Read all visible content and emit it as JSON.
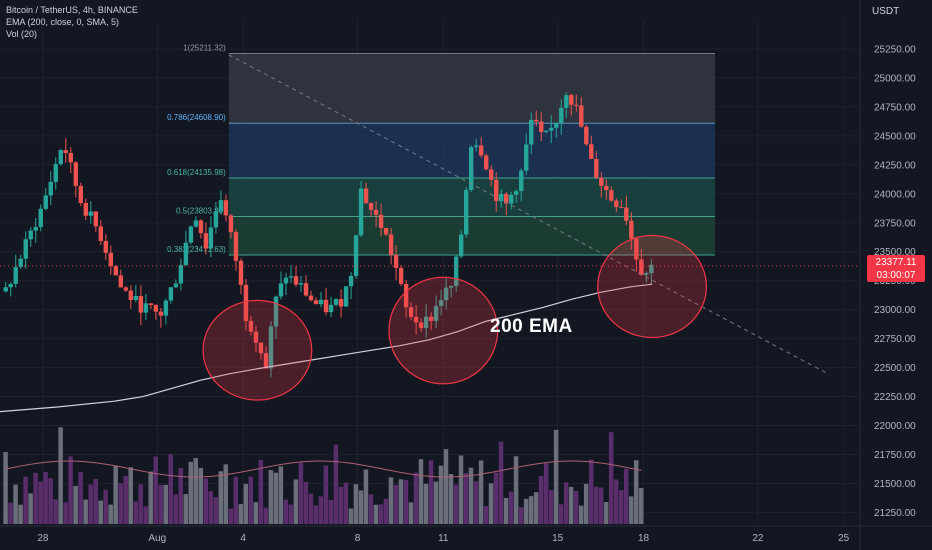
{
  "legend": {
    "symbol": "Bitcoin / TetherUS, 4h, BINANCE",
    "ema": "EMA (200, close, 0, SMA, 5)",
    "vol": "Vol (20)"
  },
  "currency": "USDT",
  "price_tag": {
    "price": "23377.11",
    "countdown": "03:00:07"
  },
  "annotation": "200 EMA",
  "colors": {
    "background": "#131722",
    "up": "#26a69a",
    "down": "#ef5350",
    "ema": "#d1d4dc",
    "price_line": "#f23645",
    "circle": "#f23645",
    "trendline": "#787b86",
    "volume_up": "#6b6f7c",
    "volume_down": "#5a2d6b",
    "volume_ma": "#b06070"
  },
  "chart_data": {
    "type": "candlestick",
    "instrument": "Bitcoin / TetherUS",
    "timeframe": "4h",
    "exchange": "BINANCE",
    "y_axis": {
      "ticks": [
        21250,
        21500,
        21750,
        22000,
        22250,
        22500,
        22750,
        23000,
        23250,
        23500,
        23750,
        24000,
        24250,
        24500,
        24750,
        25000,
        25250
      ],
      "tick_labels": [
        "21250.00",
        "21500.00",
        "21750.00",
        "22000.00",
        "22250.00",
        "22500.00",
        "22750.00",
        "23000.00",
        "23250.00",
        "23500.00",
        "23750.00",
        "24000.00",
        "24250.00",
        "24500.00",
        "24750.00",
        "25000.00",
        "25250.00"
      ],
      "range": [
        21150,
        25500
      ]
    },
    "x_axis": {
      "range": [
        "Jul 27 12:00",
        "Aug 26 00:00"
      ],
      "tick_labels": [
        "28",
        "Aug",
        "4",
        "8",
        "11",
        "15",
        "18",
        "22",
        "25"
      ],
      "tick_days": [
        1.5,
        5.5,
        8.5,
        12.5,
        15.5,
        19.5,
        22.5,
        26.5,
        29.5
      ]
    },
    "fibonacci": {
      "levels": [
        {
          "label": "1(25211.32)",
          "ratio": 1,
          "price": 25211.32
        },
        {
          "label": "0.786(24608.90)",
          "ratio": 0.786,
          "price": 24608.9
        },
        {
          "label": "0.618(24135.98)",
          "ratio": 0.618,
          "price": 24135.98
        },
        {
          "label": "0.5(23803.80)",
          "ratio": 0.5,
          "price": 23803.8
        },
        {
          "label": "0.382(23471.63)",
          "ratio": 0.382,
          "price": 23471.63
        }
      ],
      "from_day": 8.0,
      "to_day": 25.0,
      "fills": [
        "#3a3d47",
        "#1f3a5f",
        "#1b4e47",
        "#1f4a3a"
      ]
    },
    "ema_200": [
      [
        5.0,
        22250
      ],
      [
        6.0,
        22320
      ],
      [
        7.0,
        22390
      ],
      [
        8.0,
        22445
      ],
      [
        9.0,
        22490
      ],
      [
        10.0,
        22530
      ],
      [
        11.0,
        22570
      ],
      [
        12.0,
        22610
      ],
      [
        13.0,
        22650
      ],
      [
        14.0,
        22690
      ],
      [
        15.0,
        22740
      ],
      [
        16.0,
        22810
      ],
      [
        17.0,
        22900
      ],
      [
        18.0,
        22960
      ],
      [
        19.0,
        23020
      ],
      [
        20.0,
        23090
      ],
      [
        21.0,
        23150
      ],
      [
        22.0,
        23195
      ],
      [
        22.8,
        23220
      ]
    ],
    "trendline": {
      "start": [
        8.0,
        25200
      ],
      "end": [
        29.0,
        22440
      ]
    },
    "current_price": 23377.11,
    "circles": [
      {
        "center": [
          9.0,
          22650
        ],
        "radius_days": 1.9,
        "radius_price": 430
      },
      {
        "center": [
          15.5,
          22820
        ],
        "radius_days": 1.9,
        "radius_price": 460
      },
      {
        "center": [
          22.8,
          23200
        ],
        "radius_days": 1.9,
        "radius_price": 440
      }
    ],
    "candles": [],
    "candle_anchors": [
      [
        5.6,
        22950
      ],
      [
        6.2,
        23300
      ],
      [
        6.8,
        23850
      ],
      [
        7.2,
        23550
      ],
      [
        7.7,
        24000
      ],
      [
        8.2,
        23500
      ],
      [
        8.6,
        22950
      ],
      [
        9.0,
        22750
      ],
      [
        9.3,
        22500
      ],
      [
        9.6,
        23050
      ],
      [
        10.0,
        23300
      ],
      [
        10.5,
        23200
      ],
      [
        11.0,
        23050
      ],
      [
        11.5,
        23000
      ],
      [
        12.0,
        23100
      ],
      [
        12.3,
        23350
      ],
      [
        12.6,
        24050
      ],
      [
        13.0,
        23850
      ],
      [
        13.4,
        23700
      ],
      [
        13.8,
        23400
      ],
      [
        14.2,
        23000
      ],
      [
        14.6,
        22900
      ],
      [
        15.0,
        22900
      ],
      [
        15.4,
        23100
      ],
      [
        15.8,
        23200
      ],
      [
        16.1,
        23600
      ],
      [
        16.5,
        24500
      ],
      [
        16.9,
        24350
      ],
      [
        17.3,
        24000
      ],
      [
        17.7,
        23900
      ],
      [
        18.2,
        24150
      ],
      [
        18.6,
        24650
      ],
      [
        19.0,
        24450
      ],
      [
        19.4,
        24600
      ],
      [
        19.8,
        24900
      ],
      [
        20.2,
        24700
      ],
      [
        20.6,
        24300
      ],
      [
        21.0,
        24100
      ],
      [
        21.4,
        23950
      ],
      [
        21.8,
        23900
      ],
      [
        22.2,
        23500
      ],
      [
        22.5,
        23300
      ],
      [
        22.8,
        23377
      ]
    ],
    "volume": {
      "max_axis": 100,
      "bars_note": "volume bars rendered at chart bottom with 20-period MA"
    }
  }
}
